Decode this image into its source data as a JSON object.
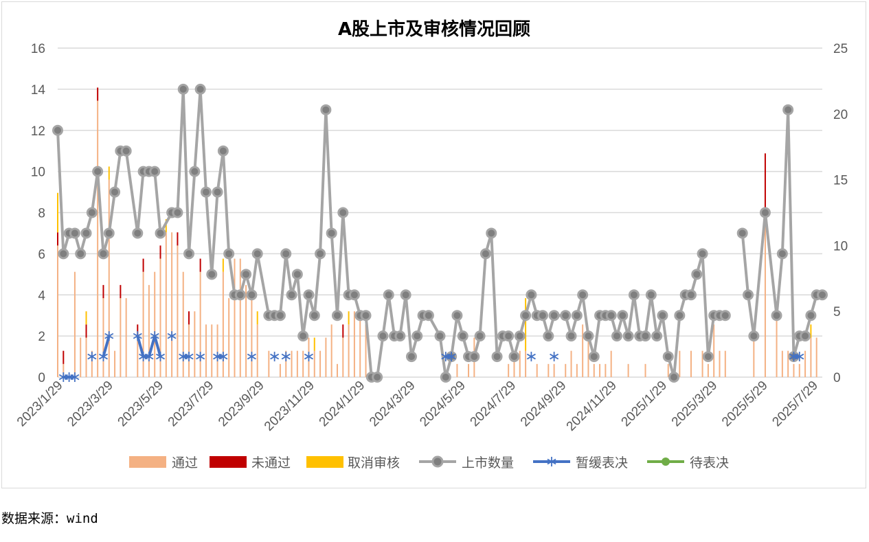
{
  "chart_data": {
    "type": "bar+line",
    "title": "A股上市及审核情况回顾",
    "x_unit": "week index (weekly, starting 2023/1/29)",
    "x_tick_labels": [
      "2023/1/29",
      "2023/3/29",
      "2023/5/29",
      "2023/7/29",
      "2023/9/29",
      "2023/11/29",
      "2024/1/29",
      "2024/3/29",
      "2024/5/29",
      "2024/7/29",
      "2024/9/29",
      "2024/11/29",
      "2025/1/29",
      "2025/3/29",
      "2025/5/29",
      "2025/7/29"
    ],
    "left_axis": {
      "min": 0,
      "max": 16,
      "step": 2,
      "ticks": [
        "0",
        "2",
        "4",
        "6",
        "8",
        "10",
        "12",
        "14",
        "16"
      ]
    },
    "right_axis": {
      "min": 0,
      "max": 25,
      "step": 5,
      "ticks": [
        "0",
        "5",
        "10",
        "15",
        "20",
        "25"
      ]
    },
    "grid": true,
    "legend_position": "bottom",
    "legend": [
      "通过",
      "未通过",
      "取消审核",
      "上市数量",
      "暂缓表决",
      "待表决"
    ],
    "colors": {
      "pass": "#F4B183",
      "fail": "#C00000",
      "cancel": "#FFC000",
      "listing": "#A5A5A5",
      "listing_marker": "#7F7F7F",
      "postpone": "#4472C4",
      "pending": "#70AD47"
    },
    "series": [
      {
        "name": "通过",
        "type": "stacked-bar",
        "axis": "right",
        "values": [
          10,
          1,
          0,
          8,
          3,
          3,
          2,
          21,
          6,
          15,
          2,
          6,
          6,
          0,
          3,
          8,
          7,
          8,
          9,
          11,
          11,
          10,
          8,
          4,
          5,
          8,
          4,
          4,
          4,
          8,
          6,
          9,
          9,
          7,
          6,
          4,
          0,
          2,
          0,
          1,
          2,
          2,
          2,
          2,
          3,
          2,
          2,
          3,
          4,
          1,
          3,
          4,
          5,
          5,
          4,
          0,
          0,
          0,
          0,
          0,
          0,
          0,
          0,
          0,
          0,
          0,
          0,
          0,
          0,
          0,
          1,
          0,
          1,
          3,
          0,
          0,
          0,
          0,
          0,
          1,
          2,
          2,
          2,
          0,
          1,
          0,
          1,
          1,
          0,
          1,
          2,
          1,
          4,
          3,
          1,
          1,
          1,
          2,
          0,
          0,
          1,
          0,
          0,
          1,
          0,
          0,
          0,
          1,
          0,
          2,
          0,
          2,
          0,
          2,
          1,
          4,
          2,
          2,
          0,
          0,
          0,
          0,
          3,
          0,
          12,
          0,
          5,
          2,
          2,
          1,
          1,
          2,
          3,
          3,
          0
        ]
      },
      {
        "name": "未通过",
        "type": "stacked-bar",
        "axis": "right",
        "values": [
          1,
          1,
          0,
          0,
          0,
          1,
          0,
          1,
          1,
          0,
          0,
          1,
          0,
          0,
          1,
          1,
          0,
          0,
          1,
          0,
          0,
          1,
          0,
          1,
          0,
          1,
          0,
          0,
          0,
          0,
          0,
          0,
          0,
          0,
          0,
          0,
          0,
          0,
          0,
          0,
          0,
          0,
          0,
          0,
          0,
          0,
          0,
          0,
          0,
          0,
          1,
          0,
          0,
          0,
          0,
          0,
          0,
          0,
          0,
          0,
          0,
          0,
          0,
          0,
          0,
          0,
          0,
          0,
          0,
          0,
          0,
          0,
          0,
          0,
          0,
          0,
          0,
          0,
          0,
          0,
          0,
          0,
          0,
          0,
          0,
          0,
          0,
          0,
          0,
          0,
          0,
          0,
          0,
          0,
          0,
          0,
          0,
          0,
          0,
          0,
          0,
          0,
          0,
          0,
          0,
          0,
          0,
          0,
          0,
          0,
          0,
          0,
          0,
          0,
          0,
          0,
          0,
          0,
          0,
          0,
          0,
          0,
          0,
          0,
          5,
          0,
          0,
          0,
          0,
          0,
          0,
          0,
          0,
          0,
          0
        ]
      },
      {
        "name": "取消审核",
        "type": "stacked-bar",
        "axis": "right",
        "values": [
          3,
          0,
          0,
          0,
          0,
          1,
          0,
          0,
          0,
          1,
          0,
          0,
          0,
          0,
          0,
          0,
          0,
          0,
          0,
          1,
          0,
          0,
          0,
          0,
          0,
          0,
          0,
          0,
          0,
          1,
          0,
          0,
          0,
          0,
          0,
          1,
          0,
          0,
          0,
          0,
          0,
          0,
          0,
          0,
          0,
          1,
          0,
          0,
          0,
          0,
          0,
          1,
          0,
          0,
          0,
          0,
          0,
          0,
          0,
          0,
          0,
          0,
          0,
          0,
          0,
          0,
          0,
          0,
          0,
          0,
          0,
          0,
          0,
          0,
          0,
          0,
          0,
          0,
          0,
          0,
          0,
          0,
          4,
          0,
          0,
          0,
          0,
          0,
          0,
          0,
          0,
          0,
          0,
          0,
          0,
          0,
          0,
          0,
          0,
          0,
          0,
          0,
          0,
          0,
          0,
          0,
          0,
          0,
          0,
          0,
          0,
          0,
          0,
          0,
          0,
          0,
          0,
          0,
          0,
          0,
          0,
          0,
          0,
          0,
          0,
          0,
          0,
          0,
          0,
          0,
          0,
          0,
          1,
          0,
          0
        ]
      },
      {
        "name": "上市数量",
        "type": "line",
        "axis": "left",
        "break_before": [
          120
        ],
        "values": [
          12,
          6,
          7,
          7,
          6,
          7,
          8,
          10,
          6,
          7,
          9,
          11,
          11,
          null,
          7,
          10,
          10,
          10,
          7,
          null,
          8,
          8,
          14,
          6,
          10,
          14,
          9,
          5,
          9,
          11,
          6,
          4,
          4,
          5,
          4,
          6,
          null,
          3,
          3,
          3,
          6,
          4,
          5,
          2,
          4,
          3,
          6,
          13,
          7,
          3,
          8,
          4,
          4,
          3,
          3,
          0,
          0,
          2,
          4,
          2,
          2,
          4,
          1,
          2,
          3,
          3,
          null,
          2,
          0,
          1,
          3,
          2,
          1,
          1,
          2,
          6,
          7,
          1,
          2,
          2,
          1,
          2,
          3,
          4,
          3,
          3,
          2,
          3,
          null,
          3,
          2,
          3,
          4,
          2,
          1,
          3,
          3,
          3,
          2,
          3,
          2,
          4,
          2,
          2,
          4,
          2,
          3,
          1,
          0,
          3,
          4,
          4,
          5,
          6,
          1,
          3,
          3,
          3,
          null,
          null,
          7,
          4,
          2,
          null,
          8,
          null,
          3,
          6,
          13,
          1,
          2,
          2,
          3,
          4,
          4
        ]
      },
      {
        "name": "暂缓表决",
        "type": "line-asterisk",
        "axis": "left",
        "points": [
          [
            1,
            0
          ],
          [
            2,
            0
          ],
          [
            3,
            0
          ],
          [
            6,
            1
          ],
          [
            8,
            1
          ],
          [
            9,
            2
          ],
          [
            14,
            2
          ],
          [
            15,
            1
          ],
          [
            16,
            1
          ],
          [
            17,
            2
          ],
          [
            18,
            1
          ],
          [
            20,
            2
          ],
          [
            22,
            1
          ],
          [
            23,
            1
          ],
          [
            25,
            1
          ],
          [
            28,
            1
          ],
          [
            29,
            1
          ],
          [
            34,
            1
          ],
          [
            38,
            1
          ],
          [
            40,
            1
          ],
          [
            44,
            1
          ],
          [
            68,
            1
          ],
          [
            69,
            1
          ],
          [
            83,
            1
          ],
          [
            87,
            1
          ],
          [
            129,
            1
          ],
          [
            130,
            1
          ]
        ]
      },
      {
        "name": "待表决",
        "type": "line",
        "axis": "left",
        "points": []
      }
    ]
  },
  "source_note": "数据来源：wind"
}
